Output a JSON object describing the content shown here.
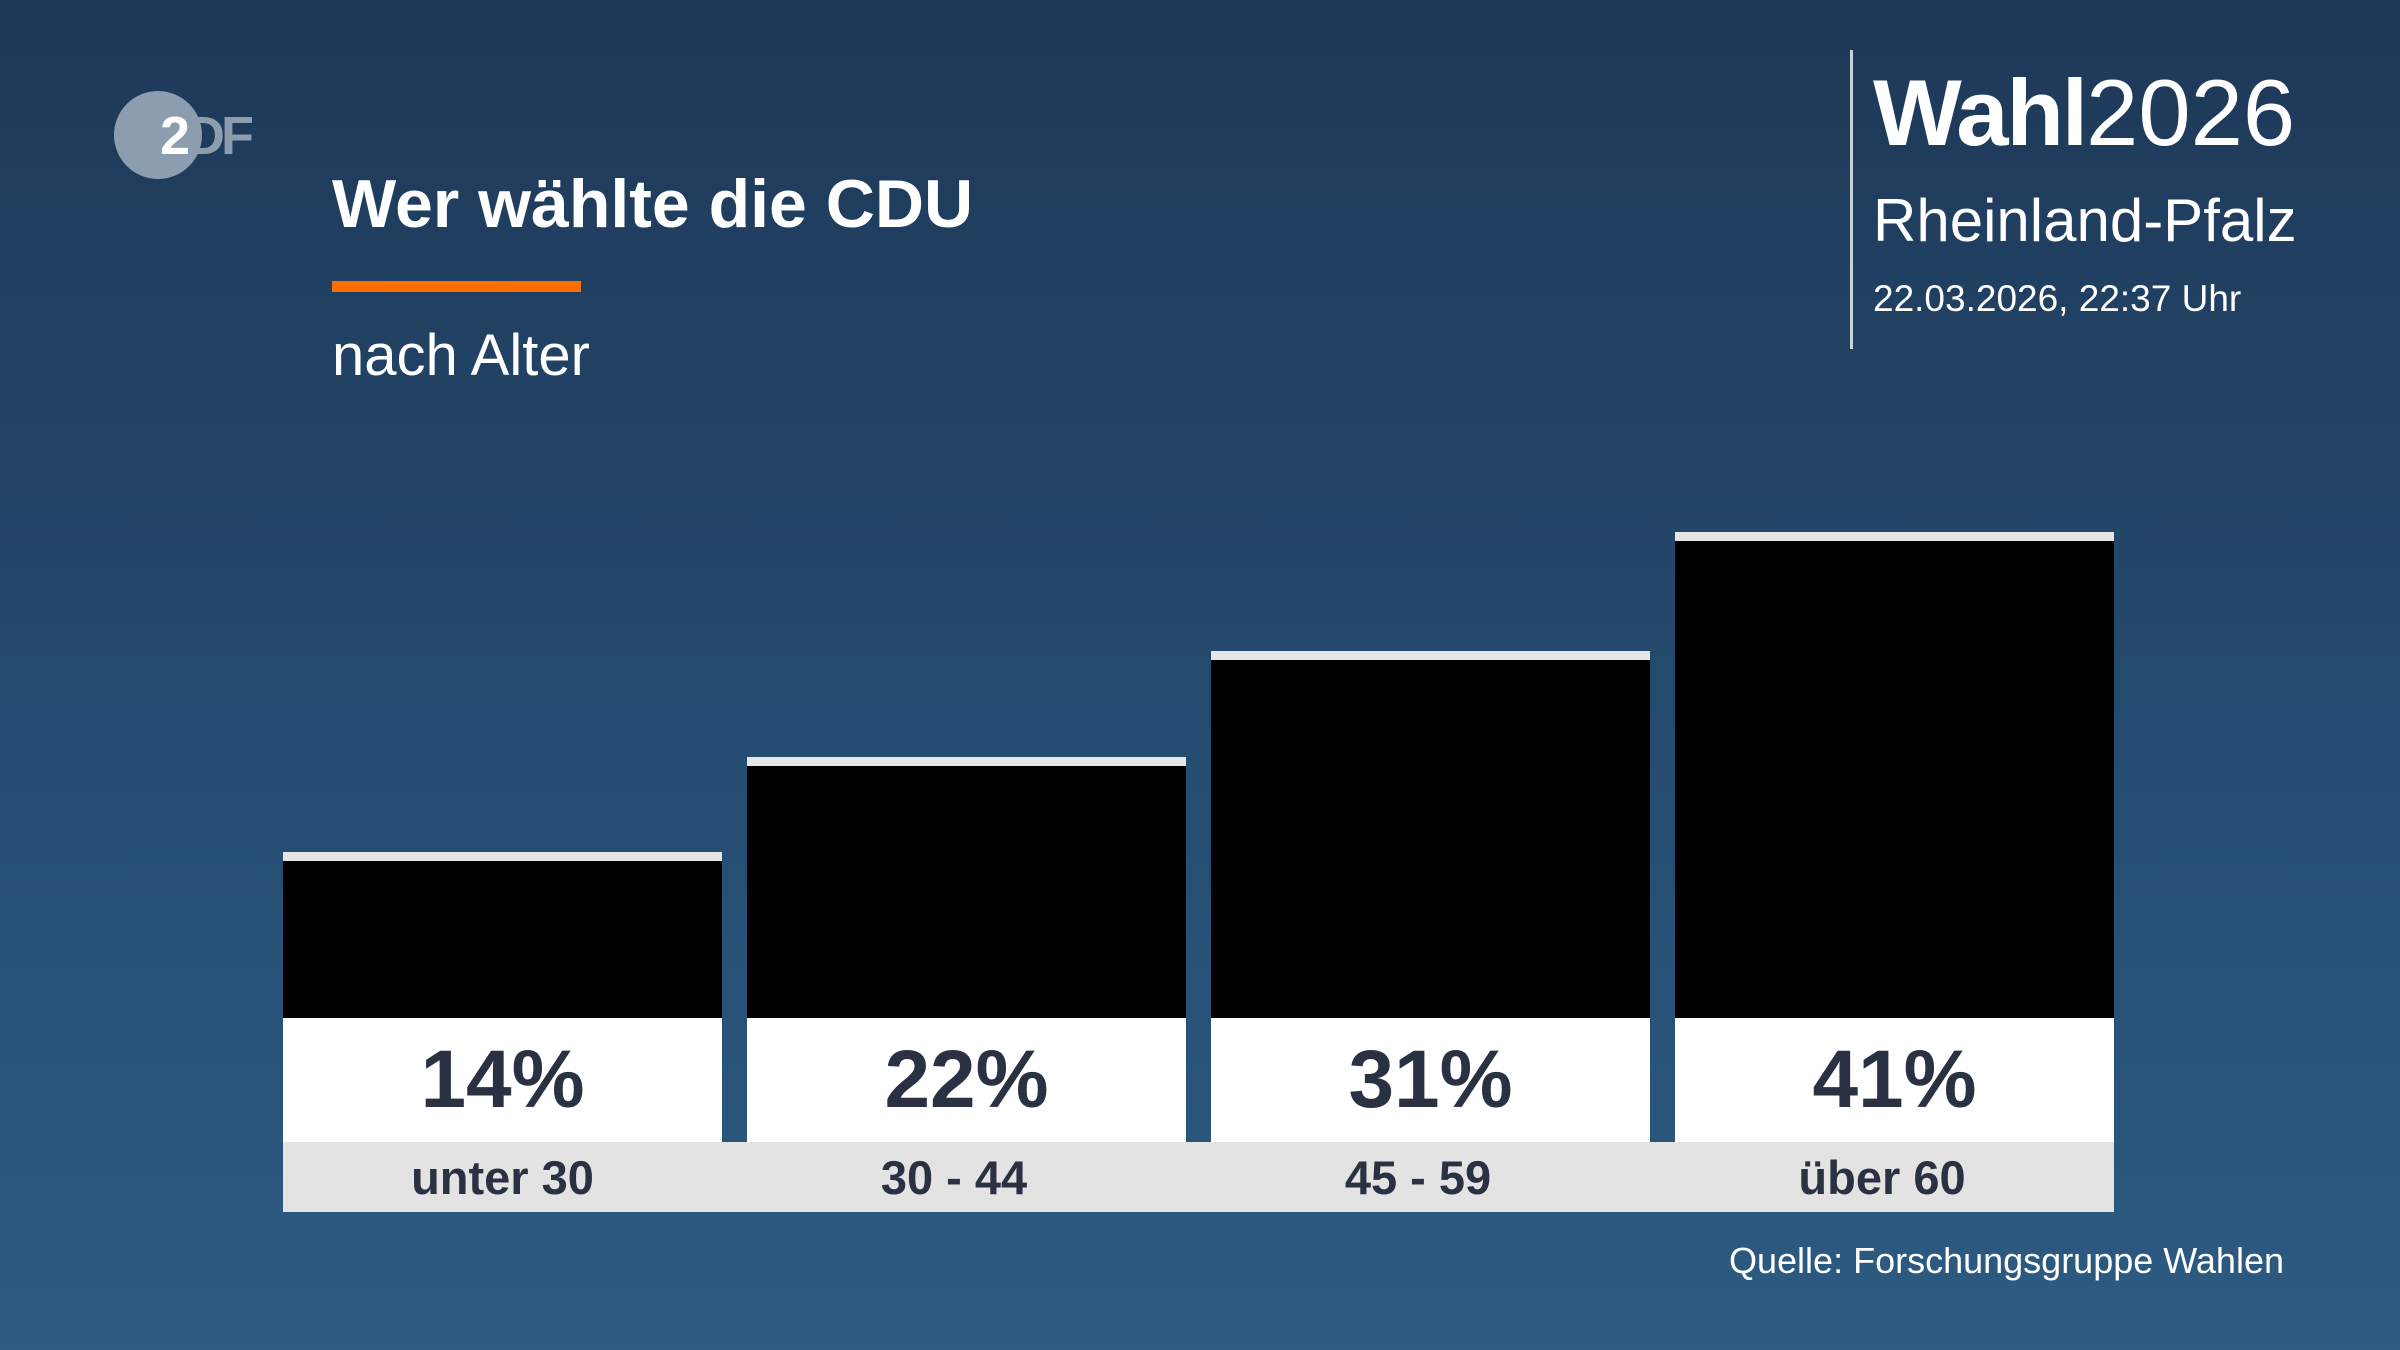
{
  "logo": {
    "text_a": "2",
    "text_b": "DF"
  },
  "header": {
    "title": "Wer wählte die CDU",
    "subtitle": "nach Alter",
    "accent_color": "#ff6e00"
  },
  "brand": {
    "wahl": "Wahl",
    "year": "2026",
    "region": "Rheinland-Pfalz",
    "datetime": "22.03.2026, 22:37 Uhr"
  },
  "source": "Quelle: Forschungsgruppe Wahlen",
  "chart_data": {
    "type": "bar",
    "title": "Wer wählte die CDU",
    "subtitle": "nach Alter",
    "categories": [
      "unter 30",
      "30 - 44",
      "45 - 59",
      "über 60"
    ],
    "values": [
      14,
      22,
      31,
      41
    ],
    "value_labels": [
      "14%",
      "22%",
      "31%",
      "41%"
    ],
    "unit": "%",
    "bar_color": "#000000",
    "grid": false
  }
}
